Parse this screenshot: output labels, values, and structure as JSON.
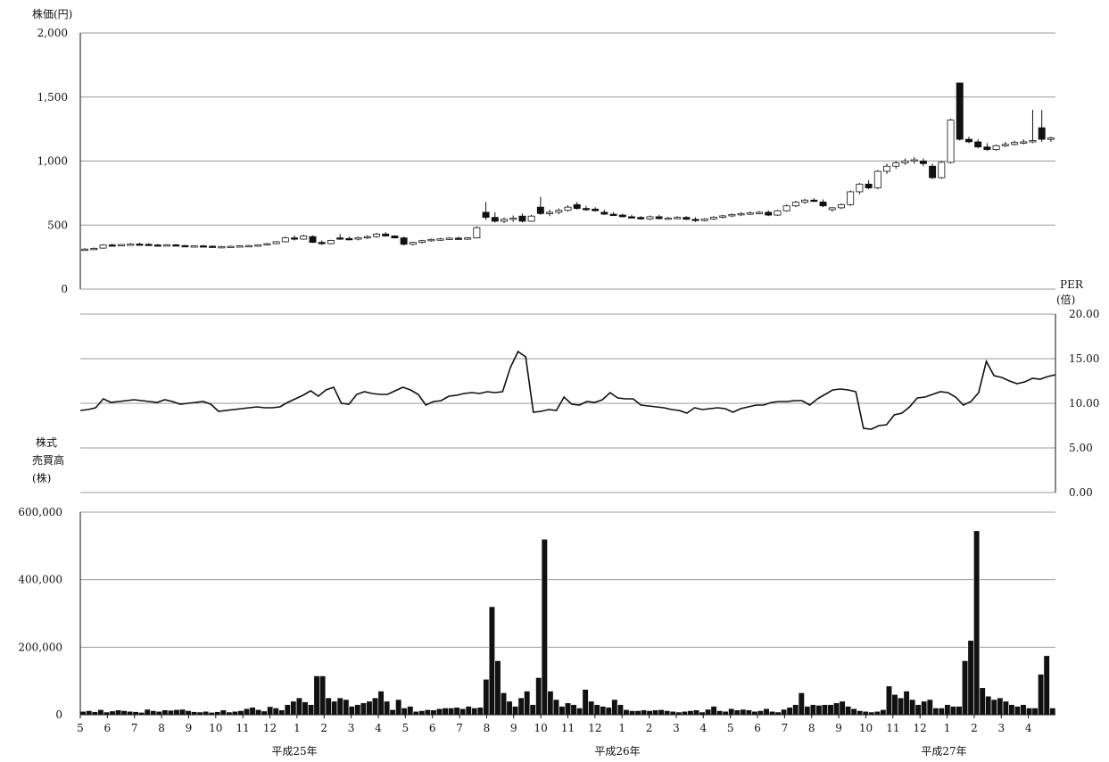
{
  "chart_data": [
    {
      "type": "candlestick",
      "ylabel": "株価(円)",
      "ylim": [
        0,
        2000
      ],
      "yticks": [
        "0",
        "500",
        "1,000",
        "1,500",
        "2,000"
      ],
      "ytick_values": [
        0,
        500,
        1000,
        1500,
        2000
      ],
      "grid": true,
      "candles": [
        {
          "o": 310,
          "h": 320,
          "l": 300,
          "c": 312
        },
        {
          "o": 312,
          "h": 325,
          "l": 305,
          "c": 318
        },
        {
          "o": 320,
          "h": 350,
          "l": 315,
          "c": 345
        },
        {
          "o": 345,
          "h": 355,
          "l": 335,
          "c": 340
        },
        {
          "o": 340,
          "h": 350,
          "l": 335,
          "c": 348
        },
        {
          "o": 348,
          "h": 360,
          "l": 340,
          "c": 352
        },
        {
          "o": 352,
          "h": 362,
          "l": 345,
          "c": 350
        },
        {
          "o": 350,
          "h": 358,
          "l": 342,
          "c": 345
        },
        {
          "o": 345,
          "h": 352,
          "l": 338,
          "c": 340
        },
        {
          "o": 340,
          "h": 350,
          "l": 334,
          "c": 346
        },
        {
          "o": 346,
          "h": 352,
          "l": 338,
          "c": 340
        },
        {
          "o": 340,
          "h": 345,
          "l": 330,
          "c": 335
        },
        {
          "o": 335,
          "h": 342,
          "l": 328,
          "c": 338
        },
        {
          "o": 338,
          "h": 345,
          "l": 330,
          "c": 335
        },
        {
          "o": 335,
          "h": 340,
          "l": 325,
          "c": 330
        },
        {
          "o": 330,
          "h": 338,
          "l": 325,
          "c": 332
        },
        {
          "o": 332,
          "h": 340,
          "l": 326,
          "c": 334
        },
        {
          "o": 334,
          "h": 342,
          "l": 328,
          "c": 338
        },
        {
          "o": 338,
          "h": 345,
          "l": 330,
          "c": 340
        },
        {
          "o": 340,
          "h": 348,
          "l": 335,
          "c": 345
        },
        {
          "o": 345,
          "h": 360,
          "l": 340,
          "c": 355
        },
        {
          "o": 355,
          "h": 375,
          "l": 350,
          "c": 370
        },
        {
          "o": 370,
          "h": 410,
          "l": 365,
          "c": 400
        },
        {
          "o": 400,
          "h": 420,
          "l": 380,
          "c": 390
        },
        {
          "o": 390,
          "h": 425,
          "l": 385,
          "c": 415
        },
        {
          "o": 410,
          "h": 420,
          "l": 360,
          "c": 365
        },
        {
          "o": 365,
          "h": 380,
          "l": 345,
          "c": 355
        },
        {
          "o": 355,
          "h": 385,
          "l": 350,
          "c": 380
        },
        {
          "o": 400,
          "h": 430,
          "l": 385,
          "c": 395
        },
        {
          "o": 395,
          "h": 410,
          "l": 380,
          "c": 390
        },
        {
          "o": 390,
          "h": 410,
          "l": 380,
          "c": 402
        },
        {
          "o": 402,
          "h": 420,
          "l": 390,
          "c": 410
        },
        {
          "o": 410,
          "h": 440,
          "l": 400,
          "c": 430
        },
        {
          "o": 430,
          "h": 445,
          "l": 410,
          "c": 415
        },
        {
          "o": 415,
          "h": 420,
          "l": 395,
          "c": 400
        },
        {
          "o": 400,
          "h": 410,
          "l": 340,
          "c": 350
        },
        {
          "o": 350,
          "h": 370,
          "l": 340,
          "c": 365
        },
        {
          "o": 365,
          "h": 385,
          "l": 355,
          "c": 378
        },
        {
          "o": 378,
          "h": 395,
          "l": 370,
          "c": 388
        },
        {
          "o": 388,
          "h": 400,
          "l": 378,
          "c": 392
        },
        {
          "o": 392,
          "h": 405,
          "l": 385,
          "c": 398
        },
        {
          "o": 398,
          "h": 410,
          "l": 385,
          "c": 392
        },
        {
          "o": 392,
          "h": 405,
          "l": 385,
          "c": 400
        },
        {
          "o": 400,
          "h": 490,
          "l": 395,
          "c": 480
        },
        {
          "o": 600,
          "h": 680,
          "l": 540,
          "c": 560
        },
        {
          "o": 560,
          "h": 600,
          "l": 520,
          "c": 530
        },
        {
          "o": 530,
          "h": 560,
          "l": 515,
          "c": 545
        },
        {
          "o": 545,
          "h": 575,
          "l": 525,
          "c": 555
        },
        {
          "o": 570,
          "h": 590,
          "l": 520,
          "c": 530
        },
        {
          "o": 530,
          "h": 580,
          "l": 525,
          "c": 570
        },
        {
          "o": 640,
          "h": 720,
          "l": 580,
          "c": 590
        },
        {
          "o": 590,
          "h": 620,
          "l": 570,
          "c": 600
        },
        {
          "o": 600,
          "h": 630,
          "l": 585,
          "c": 615
        },
        {
          "o": 615,
          "h": 655,
          "l": 605,
          "c": 640
        },
        {
          "o": 660,
          "h": 680,
          "l": 620,
          "c": 630
        },
        {
          "o": 630,
          "h": 650,
          "l": 610,
          "c": 625
        },
        {
          "o": 625,
          "h": 640,
          "l": 605,
          "c": 612
        },
        {
          "o": 600,
          "h": 620,
          "l": 580,
          "c": 585
        },
        {
          "o": 585,
          "h": 600,
          "l": 570,
          "c": 578
        },
        {
          "o": 578,
          "h": 590,
          "l": 560,
          "c": 565
        },
        {
          "o": 565,
          "h": 580,
          "l": 550,
          "c": 560
        },
        {
          "o": 560,
          "h": 570,
          "l": 540,
          "c": 548
        },
        {
          "o": 548,
          "h": 575,
          "l": 540,
          "c": 565
        },
        {
          "o": 565,
          "h": 580,
          "l": 545,
          "c": 550
        },
        {
          "o": 550,
          "h": 565,
          "l": 540,
          "c": 555
        },
        {
          "o": 555,
          "h": 570,
          "l": 545,
          "c": 560
        },
        {
          "o": 560,
          "h": 570,
          "l": 540,
          "c": 545
        },
        {
          "o": 545,
          "h": 560,
          "l": 525,
          "c": 535
        },
        {
          "o": 535,
          "h": 555,
          "l": 528,
          "c": 548
        },
        {
          "o": 548,
          "h": 570,
          "l": 540,
          "c": 562
        },
        {
          "o": 562,
          "h": 580,
          "l": 552,
          "c": 572
        },
        {
          "o": 572,
          "h": 590,
          "l": 562,
          "c": 582
        },
        {
          "o": 582,
          "h": 600,
          "l": 570,
          "c": 590
        },
        {
          "o": 590,
          "h": 605,
          "l": 578,
          "c": 595
        },
        {
          "o": 595,
          "h": 610,
          "l": 585,
          "c": 600
        },
        {
          "o": 600,
          "h": 615,
          "l": 570,
          "c": 578
        },
        {
          "o": 578,
          "h": 620,
          "l": 572,
          "c": 612
        },
        {
          "o": 612,
          "h": 660,
          "l": 605,
          "c": 650
        },
        {
          "o": 650,
          "h": 690,
          "l": 640,
          "c": 678
        },
        {
          "o": 678,
          "h": 705,
          "l": 665,
          "c": 695
        },
        {
          "o": 695,
          "h": 710,
          "l": 680,
          "c": 688
        },
        {
          "o": 680,
          "h": 700,
          "l": 640,
          "c": 650
        },
        {
          "o": 620,
          "h": 640,
          "l": 605,
          "c": 635
        },
        {
          "o": 635,
          "h": 670,
          "l": 625,
          "c": 660
        },
        {
          "o": 660,
          "h": 770,
          "l": 650,
          "c": 760
        },
        {
          "o": 760,
          "h": 830,
          "l": 740,
          "c": 820
        },
        {
          "o": 820,
          "h": 850,
          "l": 780,
          "c": 790
        },
        {
          "o": 790,
          "h": 930,
          "l": 780,
          "c": 920
        },
        {
          "o": 920,
          "h": 980,
          "l": 900,
          "c": 960
        },
        {
          "o": 960,
          "h": 1000,
          "l": 940,
          "c": 985
        },
        {
          "o": 985,
          "h": 1020,
          "l": 970,
          "c": 1000
        },
        {
          "o": 1000,
          "h": 1030,
          "l": 980,
          "c": 1010
        },
        {
          "o": 1000,
          "h": 1020,
          "l": 960,
          "c": 980
        },
        {
          "o": 960,
          "h": 980,
          "l": 860,
          "c": 870
        },
        {
          "o": 870,
          "h": 1000,
          "l": 860,
          "c": 990
        },
        {
          "o": 990,
          "h": 1330,
          "l": 980,
          "c": 1320
        },
        {
          "o": 1610,
          "h": 1610,
          "l": 1160,
          "c": 1170
        },
        {
          "o": 1170,
          "h": 1190,
          "l": 1140,
          "c": 1150
        },
        {
          "o": 1150,
          "h": 1170,
          "l": 1100,
          "c": 1110
        },
        {
          "o": 1110,
          "h": 1140,
          "l": 1080,
          "c": 1090
        },
        {
          "o": 1090,
          "h": 1130,
          "l": 1080,
          "c": 1120
        },
        {
          "o": 1120,
          "h": 1150,
          "l": 1110,
          "c": 1130
        },
        {
          "o": 1130,
          "h": 1160,
          "l": 1120,
          "c": 1145
        },
        {
          "o": 1145,
          "h": 1170,
          "l": 1130,
          "c": 1150
        },
        {
          "o": 1150,
          "h": 1400,
          "l": 1140,
          "c": 1160
        },
        {
          "o": 1260,
          "h": 1400,
          "l": 1150,
          "c": 1170
        },
        {
          "o": 1170,
          "h": 1190,
          "l": 1150,
          "c": 1180
        }
      ]
    },
    {
      "type": "line",
      "ylabel": "PER\n(倍)",
      "ylim": [
        0,
        20
      ],
      "yticks": [
        "0.00",
        "5.00",
        "10.00",
        "15.00",
        "20.00"
      ],
      "ytick_values": [
        0,
        5,
        10,
        15,
        20
      ],
      "grid": true,
      "values": [
        9.2,
        9.3,
        9.5,
        10.5,
        10.1,
        10.2,
        10.3,
        10.4,
        10.3,
        10.2,
        10.1,
        10.4,
        10.2,
        9.9,
        10.0,
        10.1,
        10.2,
        9.9,
        9.1,
        9.2,
        9.3,
        9.4,
        9.5,
        9.6,
        9.5,
        9.5,
        9.6,
        10.1,
        10.5,
        10.9,
        11.4,
        10.8,
        11.5,
        11.8,
        10.0,
        9.9,
        11.0,
        11.3,
        11.1,
        11.0,
        11.0,
        11.4,
        11.8,
        11.5,
        11.0,
        9.8,
        10.2,
        10.3,
        10.8,
        10.9,
        11.1,
        11.2,
        11.1,
        11.3,
        11.2,
        11.3,
        14.0,
        15.8,
        15.2,
        9.0,
        9.1,
        9.3,
        9.2,
        10.7,
        9.9,
        9.8,
        10.2,
        10.1,
        10.4,
        11.2,
        10.6,
        10.5,
        10.5,
        9.8,
        9.7,
        9.6,
        9.5,
        9.3,
        9.2,
        8.9,
        9.5,
        9.3,
        9.4,
        9.5,
        9.4,
        9.0,
        9.4,
        9.6,
        9.8,
        9.8,
        10.1,
        10.2,
        10.2,
        10.3,
        10.3,
        9.8,
        10.5,
        11.0,
        11.5,
        11.6,
        11.5,
        11.3,
        7.2,
        7.1,
        7.5,
        7.6,
        8.7,
        8.9,
        9.6,
        10.6,
        10.7,
        11.0,
        11.3,
        11.2,
        10.7,
        9.8,
        10.2,
        11.2,
        14.7,
        13.1,
        12.9,
        12.5,
        12.2,
        12.4,
        12.8,
        12.7,
        13.0,
        13.2
      ]
    },
    {
      "type": "bar",
      "ylabel": "株式\n売買高\n(株)",
      "ylim": [
        0,
        600000
      ],
      "yticks": [
        "0",
        "200,000",
        "400,000",
        "600,000"
      ],
      "ytick_values": [
        0,
        200000,
        400000,
        600000
      ],
      "grid": true,
      "values": [
        10000,
        12000,
        9000,
        15000,
        8000,
        11000,
        14000,
        12000,
        10000,
        9000,
        7000,
        16000,
        12000,
        10000,
        14000,
        13000,
        15000,
        16000,
        12000,
        9000,
        8000,
        10000,
        7000,
        9000,
        14000,
        8000,
        10000,
        12000,
        18000,
        22000,
        15000,
        11000,
        24000,
        20000,
        14000,
        30000,
        40000,
        50000,
        38000,
        30000,
        115000,
        115000,
        50000,
        40000,
        50000,
        45000,
        25000,
        30000,
        35000,
        40000,
        50000,
        70000,
        40000,
        15000,
        45000,
        20000,
        25000,
        10000,
        12000,
        15000,
        14000,
        18000,
        20000,
        20000,
        22000,
        18000,
        25000,
        20000,
        22000,
        105000,
        320000,
        160000,
        65000,
        40000,
        25000,
        50000,
        70000,
        30000,
        110000,
        520000,
        70000,
        45000,
        25000,
        35000,
        30000,
        20000,
        75000,
        40000,
        30000,
        25000,
        22000,
        45000,
        30000,
        15000,
        12000,
        12000,
        14000,
        12000,
        14000,
        15000,
        12000,
        10000,
        8000,
        10000,
        12000,
        14000,
        8000,
        16000,
        25000,
        12000,
        10000,
        18000,
        14000,
        16000,
        14000,
        10000,
        12000,
        18000,
        10000,
        8000,
        16000,
        22000,
        30000,
        65000,
        25000,
        30000,
        28000,
        30000,
        30000,
        35000,
        40000,
        25000,
        18000,
        12000,
        10000,
        8000,
        10000,
        15000,
        85000,
        60000,
        50000,
        70000,
        45000,
        30000,
        40000,
        45000,
        20000,
        20000,
        30000,
        25000,
        25000,
        160000,
        220000,
        545000,
        80000,
        55000,
        45000,
        50000,
        40000,
        30000,
        25000,
        30000,
        20000,
        20000,
        120000,
        175000,
        20000
      ]
    }
  ],
  "x_axis": {
    "months": [
      "5",
      "6",
      "7",
      "8",
      "9",
      "10",
      "11",
      "12",
      "1",
      "2",
      "3",
      "4",
      "5",
      "6",
      "7",
      "8",
      "9",
      "10",
      "11",
      "12",
      "1",
      "2",
      "3",
      "4",
      "5",
      "6",
      "7",
      "8",
      "9",
      "10",
      "11",
      "12",
      "1",
      "2",
      "3",
      "4"
    ],
    "years": [
      "平成25年",
      "平成26年",
      "平成27年"
    ]
  },
  "colors": {
    "ink": "#111111",
    "grid": "#999999",
    "white": "#ffffff"
  }
}
